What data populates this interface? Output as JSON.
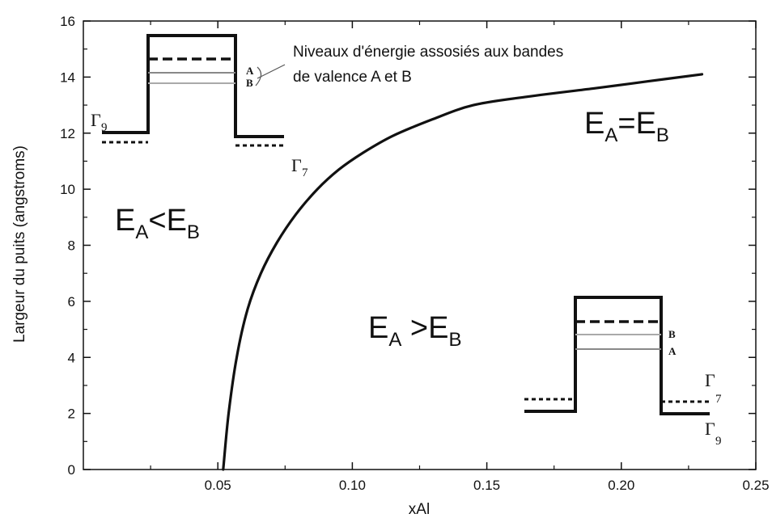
{
  "chart_data": {
    "type": "line",
    "xlabel": "xAl",
    "ylabel": "Largeur du puits (angstroms)",
    "xlim": [
      0.0,
      0.25
    ],
    "ylim": [
      0,
      16
    ],
    "x_ticks": [
      "0.05",
      "0.10",
      "0.15",
      "0.20",
      "0.25"
    ],
    "y_ticks": [
      "0",
      "2",
      "4",
      "6",
      "8",
      "10",
      "12",
      "14",
      "16"
    ],
    "grid": false,
    "series": [
      {
        "x": [
          0.052,
          0.054,
          0.057,
          0.061,
          0.066,
          0.072,
          0.079,
          0.087,
          0.095,
          0.104,
          0.115,
          0.13,
          0.145,
          0.165,
          0.19,
          0.21,
          0.23
        ],
        "y": [
          0.0,
          2.0,
          4.0,
          5.7,
          7.0,
          8.1,
          9.1,
          10.0,
          10.7,
          11.3,
          11.9,
          12.5,
          13.0,
          13.3,
          13.6,
          13.85,
          14.1
        ]
      }
    ],
    "annotations": {
      "levels_note_line1": "Niveaux d'énergie assosiés aux bandes",
      "levels_note_line2": "de valence A et B",
      "region_top_right": {
        "main": "E",
        "sub1": "A",
        "mid": "=E",
        "sub2": "B"
      },
      "region_left": {
        "main": "E",
        "sub1": "A",
        "mid": "<E",
        "sub2": "B"
      },
      "region_bottom": {
        "main": "E",
        "sub1": "A",
        "mid": " >E",
        "sub2": "B"
      },
      "inset_top": {
        "gamma_left": "Γ",
        "gamma_left_sub": "9",
        "gamma_right": "Γ",
        "gamma_right_sub": "7",
        "level_a": "A",
        "level_b": "B"
      },
      "inset_bottom": {
        "gamma_top": "Γ",
        "gamma_top_sub": "7",
        "gamma_bottom": "Γ",
        "gamma_bottom_sub": "9",
        "level_b": "B",
        "level_a": "A"
      }
    }
  }
}
